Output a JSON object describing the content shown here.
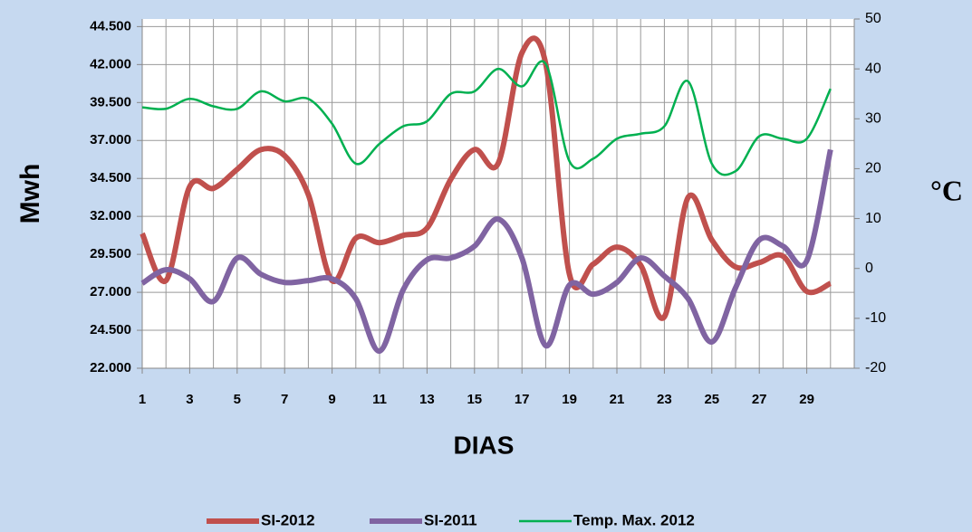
{
  "chart_data": {
    "type": "line",
    "x_label": "DIAS",
    "y_label": "Mwh",
    "y2_label": "°C",
    "x": [
      1,
      2,
      3,
      4,
      5,
      6,
      7,
      8,
      9,
      10,
      11,
      12,
      13,
      14,
      15,
      16,
      17,
      18,
      19,
      20,
      21,
      22,
      23,
      24,
      25,
      26,
      27,
      28,
      29,
      30
    ],
    "xlim": [
      1,
      31
    ],
    "xticks": [
      1,
      3,
      5,
      7,
      9,
      11,
      13,
      15,
      17,
      19,
      21,
      23,
      25,
      27,
      29
    ],
    "ylim": [
      22000,
      45000
    ],
    "yticks": [
      {
        "value": 22000,
        "label": "22.000"
      },
      {
        "value": 24500,
        "label": "24.500"
      },
      {
        "value": 27000,
        "label": "27.000"
      },
      {
        "value": 29500,
        "label": "29.500"
      },
      {
        "value": 32000,
        "label": "32.000"
      },
      {
        "value": 34500,
        "label": "34.500"
      },
      {
        "value": 37000,
        "label": "37.000"
      },
      {
        "value": 39500,
        "label": "39.500"
      },
      {
        "value": 42000,
        "label": "42.000"
      },
      {
        "value": 44500,
        "label": "44.500"
      }
    ],
    "y2lim": [
      -20,
      50
    ],
    "y2ticks": [
      -20,
      -10,
      0,
      10,
      20,
      30,
      40,
      50
    ],
    "grid": true,
    "legend": "bottom",
    "series": [
      {
        "name": "SI-2012",
        "color": "#c0504d",
        "width": 6,
        "values": [
          30870,
          27770,
          33960,
          33850,
          35100,
          36400,
          36000,
          33430,
          27770,
          30570,
          30270,
          30750,
          31230,
          34440,
          36400,
          35500,
          42770,
          42060,
          28190,
          28850,
          29980,
          28790,
          25390,
          33250,
          30450,
          28670,
          28960,
          29380,
          27060,
          27590
        ]
      },
      {
        "name": "SI-2011",
        "color": "#8064a2",
        "width": 6,
        "values": [
          27590,
          28490,
          27890,
          26400,
          29260,
          28190,
          27650,
          27770,
          27890,
          26580,
          23130,
          27180,
          29140,
          29260,
          30040,
          31820,
          29260,
          23490,
          27480,
          26880,
          27650,
          29260,
          28070,
          26580,
          23730,
          27300,
          30450,
          30040,
          29080,
          36400
        ]
      },
      {
        "name": "Temp. Max. 2012",
        "color": "#00b050",
        "width": 2.5,
        "axis": "y2",
        "values": [
          32.3,
          32,
          34,
          32.5,
          32,
          35.5,
          33.5,
          34,
          29,
          21,
          25,
          28.5,
          29.5,
          35,
          35.5,
          40,
          36.5,
          41,
          21.5,
          22,
          26,
          27,
          28.5,
          37.5,
          21,
          19.5,
          26.5,
          26,
          26,
          36
        ]
      }
    ]
  }
}
